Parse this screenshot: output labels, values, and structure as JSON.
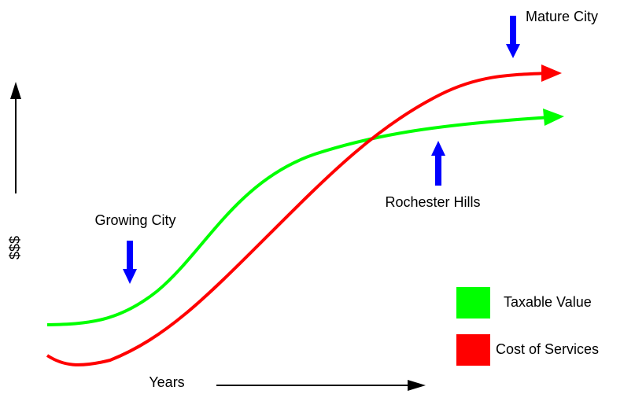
{
  "labels": {
    "mature_city": "Mature City",
    "rochester_hills": "Rochester Hills",
    "growing_city": "Growing City",
    "y_axis": "$$$",
    "x_axis": "Years"
  },
  "legend": [
    {
      "name": "Taxable Value",
      "color": "#00ff00"
    },
    {
      "name": "Cost of Services",
      "color": "#ff0000"
    }
  ]
}
